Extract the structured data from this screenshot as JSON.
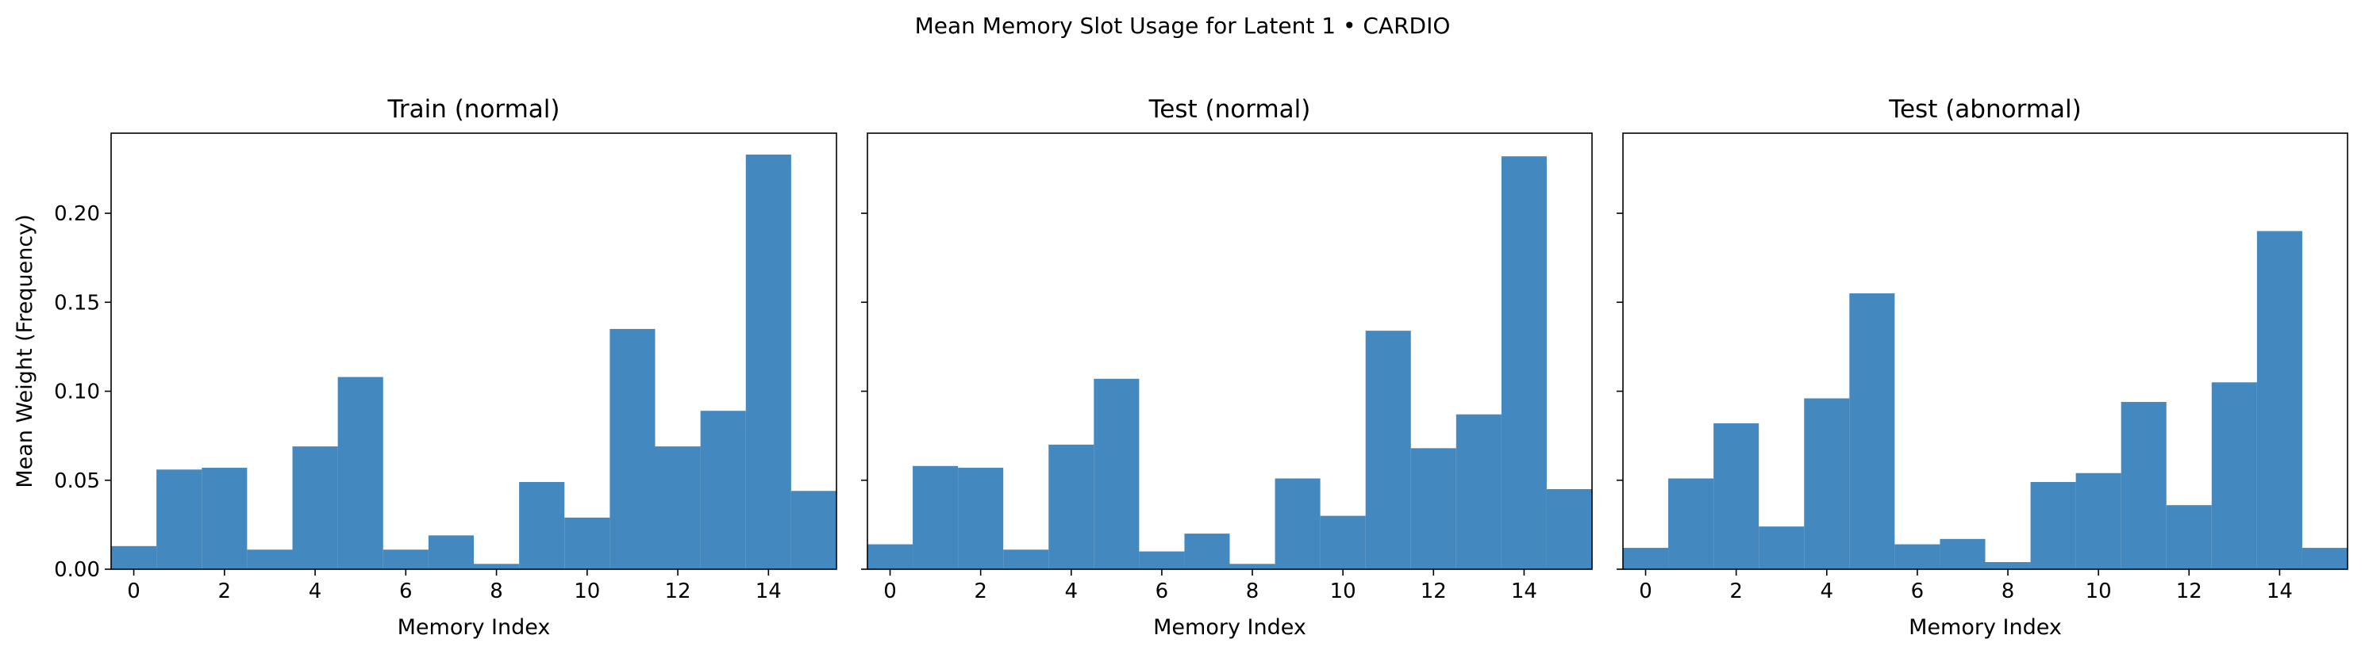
{
  "figure": {
    "suptitle": "Mean Memory Slot Usage for Latent 1 • CARDIO"
  },
  "chart_data": [
    {
      "type": "bar",
      "title": "Train (normal)",
      "xlabel": "Memory Index",
      "ylabel": "Mean Weight (Frequency)",
      "categories": [
        0,
        1,
        2,
        3,
        4,
        5,
        6,
        7,
        8,
        9,
        10,
        11,
        12,
        13,
        14,
        15
      ],
      "values": [
        0.013,
        0.056,
        0.057,
        0.011,
        0.069,
        0.108,
        0.011,
        0.019,
        0.003,
        0.049,
        0.029,
        0.135,
        0.069,
        0.089,
        0.233,
        0.044
      ],
      "xlim": [
        -0.5,
        15.5
      ],
      "ylim": [
        0,
        0.245
      ],
      "xticks": [
        0,
        2,
        4,
        6,
        8,
        10,
        12,
        14
      ],
      "yticks": [
        0.0,
        0.05,
        0.1,
        0.15,
        0.2
      ],
      "ytick_labels": [
        "0.00",
        "0.05",
        "0.10",
        "0.15",
        "0.20"
      ],
      "color": "#4389bf",
      "grid": false
    },
    {
      "type": "bar",
      "title": "Test (normal)",
      "xlabel": "Memory Index",
      "ylabel": "",
      "categories": [
        0,
        1,
        2,
        3,
        4,
        5,
        6,
        7,
        8,
        9,
        10,
        11,
        12,
        13,
        14,
        15
      ],
      "values": [
        0.014,
        0.058,
        0.057,
        0.011,
        0.07,
        0.107,
        0.01,
        0.02,
        0.003,
        0.051,
        0.03,
        0.134,
        0.068,
        0.087,
        0.232,
        0.045
      ],
      "xlim": [
        -0.5,
        15.5
      ],
      "ylim": [
        0,
        0.245
      ],
      "xticks": [
        0,
        2,
        4,
        6,
        8,
        10,
        12,
        14
      ],
      "yticks": [
        0.0,
        0.05,
        0.1,
        0.15,
        0.2
      ],
      "ytick_labels": [
        "",
        "",
        "",
        "",
        ""
      ],
      "color": "#4389bf",
      "grid": false
    },
    {
      "type": "bar",
      "title": "Test (abnormal)",
      "xlabel": "Memory Index",
      "ylabel": "",
      "categories": [
        0,
        1,
        2,
        3,
        4,
        5,
        6,
        7,
        8,
        9,
        10,
        11,
        12,
        13,
        14,
        15
      ],
      "values": [
        0.012,
        0.051,
        0.082,
        0.024,
        0.096,
        0.155,
        0.014,
        0.017,
        0.004,
        0.049,
        0.054,
        0.094,
        0.036,
        0.105,
        0.19,
        0.012
      ],
      "xlim": [
        -0.5,
        15.5
      ],
      "ylim": [
        0,
        0.245
      ],
      "xticks": [
        0,
        2,
        4,
        6,
        8,
        10,
        12,
        14
      ],
      "yticks": [
        0.0,
        0.05,
        0.1,
        0.15,
        0.2
      ],
      "ytick_labels": [
        "",
        "",
        "",
        "",
        ""
      ],
      "color": "#4389bf",
      "grid": false
    }
  ]
}
